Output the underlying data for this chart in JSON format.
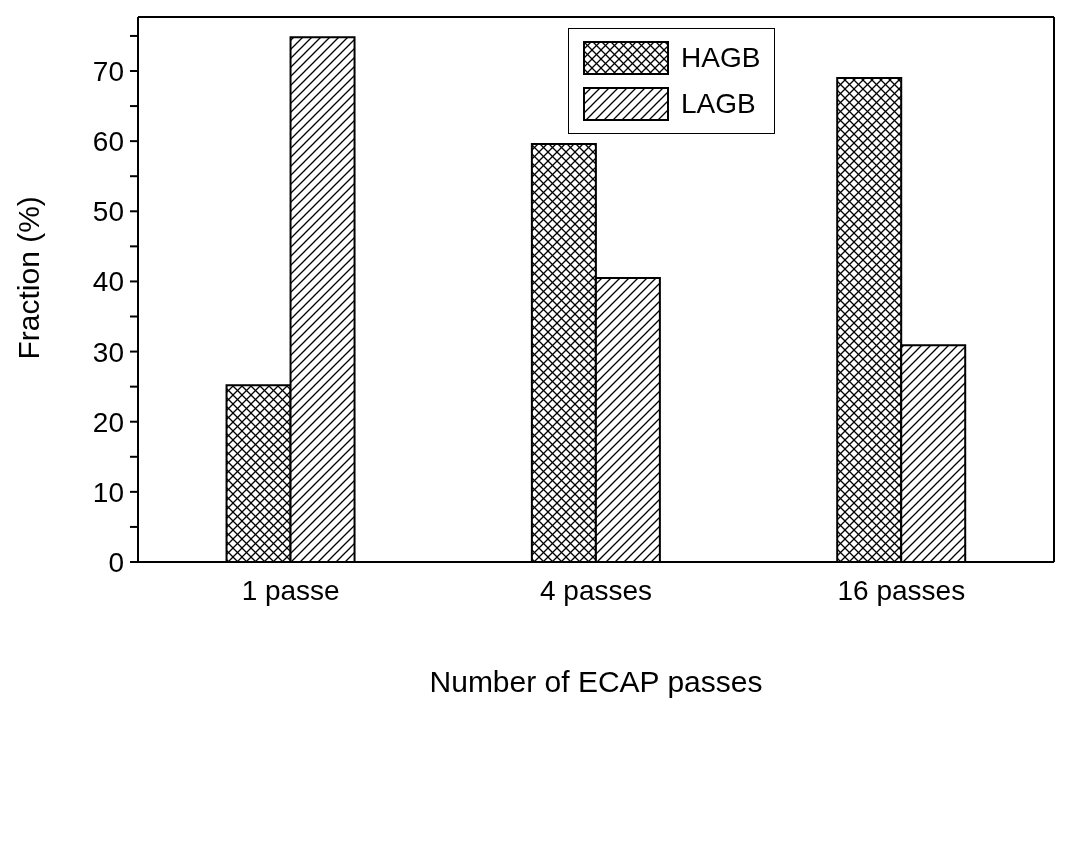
{
  "chart_data": {
    "type": "bar",
    "xlabel": "Number of ECAP passes",
    "ylabel": "Fraction (%)",
    "categories": [
      "1 passe",
      "4 passes",
      "16 passes"
    ],
    "series": [
      {
        "name": "HAGB",
        "color": "#000000",
        "values": [
          25.2,
          59.6,
          69.0
        ]
      },
      {
        "name": "LAGB",
        "color": "#000000",
        "values": [
          74.8,
          40.5,
          30.9
        ]
      }
    ],
    "ylim": [
      0,
      77.7
    ],
    "yticks": [
      0,
      {
        "value": 5,
        "label": null
      },
      10,
      {
        "value": 15,
        "label": null
      },
      20,
      {
        "value": 25,
        "label": null
      },
      30,
      {
        "value": 35,
        "label": null
      },
      40,
      {
        "value": 45,
        "label": null
      },
      50,
      {
        "value": 55,
        "label": null
      },
      60,
      {
        "value": 65,
        "label": null
      },
      70,
      {
        "value": 75,
        "label": null
      }
    ],
    "grid": false,
    "legend": "top"
  }
}
